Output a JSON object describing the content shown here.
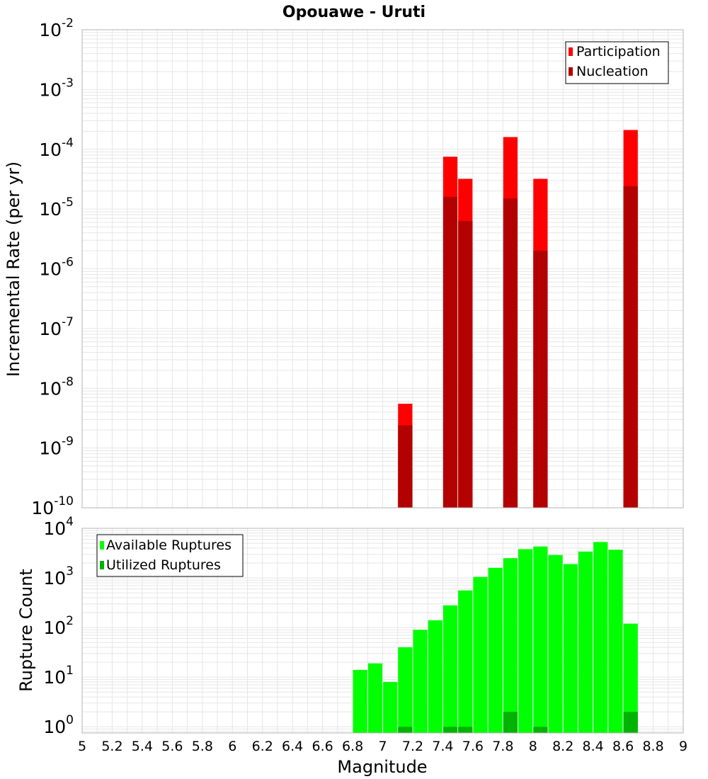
{
  "title": "Opouawe - Uruti",
  "colors": {
    "participation": "#ff0000",
    "nucleation": "#b30000",
    "available": "#00ff00",
    "utilized": "#00b300",
    "grid": "#e6e6e6",
    "frame": "#b4b4b4"
  },
  "x_axis": {
    "label": "Magnitude",
    "range": [
      5,
      9
    ],
    "ticks": [
      "5",
      "5.2",
      "5.4",
      "5.6",
      "5.8",
      "6",
      "6.2",
      "6.4",
      "6.6",
      "6.8",
      "7",
      "7.2",
      "7.4",
      "7.6",
      "7.8",
      "8",
      "8.2",
      "8.4",
      "8.6",
      "8.8",
      "9"
    ]
  },
  "chart_data": [
    {
      "type": "bar",
      "scale": "log",
      "title": "Opouawe - Uruti",
      "xlabel": "Magnitude",
      "ylabel": "Incremental Rate (per yr)",
      "xlim": [
        5,
        9
      ],
      "ylim": [
        1e-10,
        0.01
      ],
      "ytick_exponents": [
        "-2",
        "-3",
        "-4",
        "-5",
        "-6",
        "-7",
        "-8",
        "-9",
        "-10"
      ],
      "grid": true,
      "legend_position": "top-right",
      "series": [
        {
          "name": "Participation",
          "x": [
            7.15,
            7.45,
            7.55,
            7.85,
            8.05,
            8.65
          ],
          "values": [
            5.5e-09,
            7.5e-05,
            3.2e-05,
            0.00016,
            3.2e-05,
            0.00021
          ]
        },
        {
          "name": "Nucleation",
          "x": [
            7.15,
            7.45,
            7.55,
            7.85,
            8.05,
            8.65
          ],
          "values": [
            2.4e-09,
            1.6e-05,
            6.3e-06,
            1.5e-05,
            2e-06,
            2.4e-05
          ]
        }
      ]
    },
    {
      "type": "bar",
      "scale": "log",
      "xlabel": "Magnitude",
      "ylabel": "Rupture Count",
      "xlim": [
        5,
        9
      ],
      "ylim": [
        0.75,
        10000
      ],
      "ytick_exponents": [
        "4",
        "3",
        "2",
        "1",
        "0"
      ],
      "grid": true,
      "legend_position": "top-left",
      "series": [
        {
          "name": "Available Ruptures",
          "x": [
            6.85,
            6.95,
            7.05,
            7.15,
            7.25,
            7.35,
            7.45,
            7.55,
            7.65,
            7.75,
            7.85,
            7.95,
            8.05,
            8.15,
            8.25,
            8.35,
            8.45,
            8.55,
            8.65
          ],
          "values": [
            14,
            19,
            8,
            40,
            90,
            140,
            280,
            560,
            1050,
            1600,
            2500,
            3800,
            4300,
            2900,
            1900,
            3400,
            5300,
            3700,
            120
          ]
        },
        {
          "name": "Utilized Ruptures",
          "x": [
            7.15,
            7.45,
            7.55,
            7.85,
            8.05,
            8.65
          ],
          "values": [
            1,
            1,
            1,
            2,
            1,
            2
          ]
        }
      ]
    }
  ]
}
